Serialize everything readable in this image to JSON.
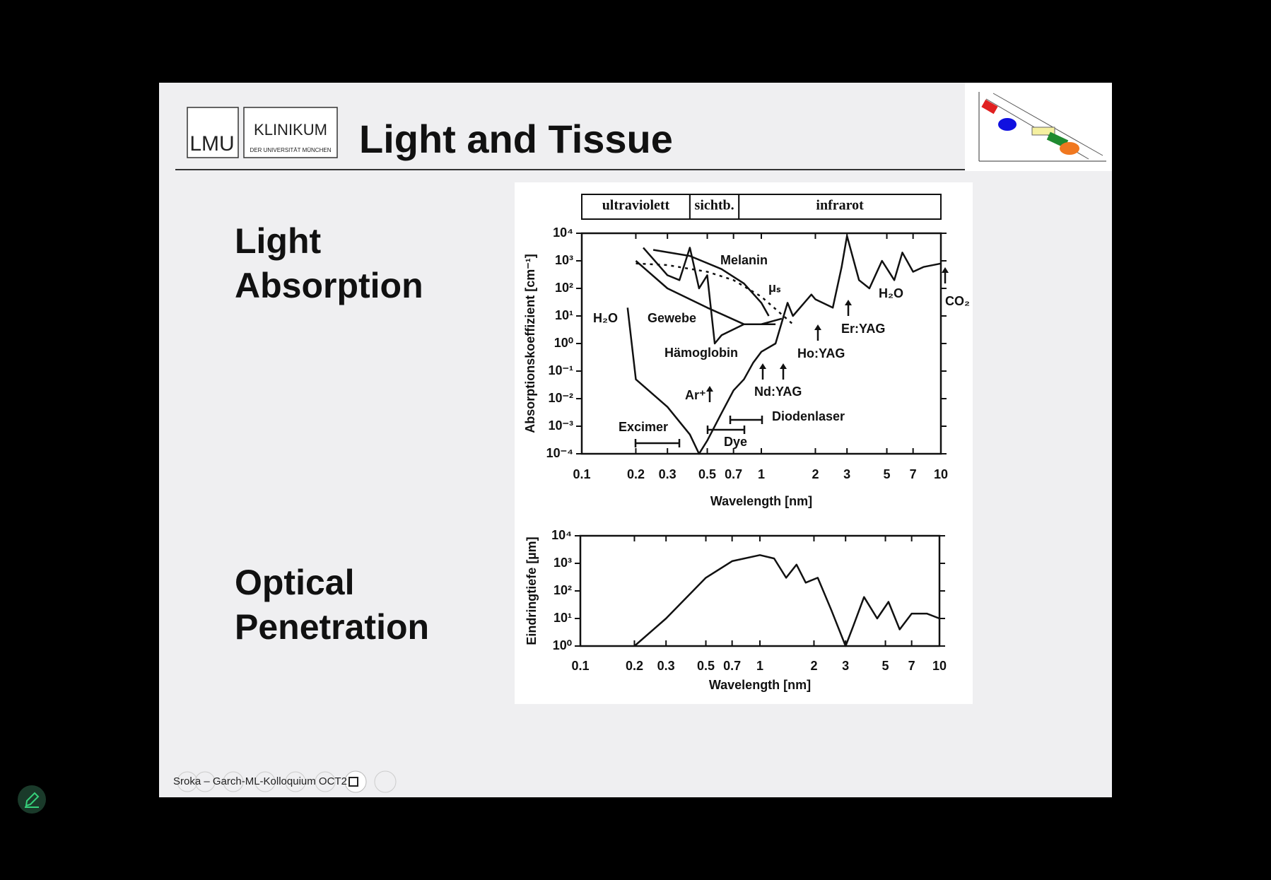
{
  "slide": {
    "title": "Light and Tissue",
    "logo_lmu": "LMU",
    "logo_klinikum": "KLINIKUM",
    "logo_sub": "DER UNIVERSITÄT MÜNCHEN",
    "heading_1": [
      "Light",
      "Absorption"
    ],
    "heading_2": [
      "Optical",
      "Penetration"
    ],
    "footer": "Sroka – Garch-ML-Kolloquium OCT2"
  },
  "chart_data": [
    {
      "type": "line",
      "x_label": "Wavelength [nm]",
      "y_label": "Absorptionskoeffizient [cm⁻¹]",
      "log_x": true,
      "log_y": true,
      "xlim": [
        0.1,
        10
      ],
      "xticks": [
        0.1,
        0.2,
        0.3,
        0.5,
        0.7,
        1,
        2,
        3,
        5,
        7,
        10
      ],
      "ylim": [
        0.0001,
        10000
      ],
      "yticks": [
        {
          "value": 0.0001,
          "label": "10⁻⁴"
        },
        {
          "value": 0.001,
          "label": "10⁻³"
        },
        {
          "value": 0.01,
          "label": "10⁻²"
        },
        {
          "value": 0.1,
          "label": "10⁻¹"
        },
        {
          "value": 1,
          "label": "10⁰"
        },
        {
          "value": 10,
          "label": "10¹"
        },
        {
          "value": 100,
          "label": "10²"
        },
        {
          "value": 1000,
          "label": "10³"
        },
        {
          "value": 10000,
          "label": "10⁴"
        }
      ],
      "bands": [
        {
          "label": "ultraviolett",
          "from": 0.1,
          "to": 0.4
        },
        {
          "label": "sichtb.",
          "from": 0.4,
          "to": 0.75
        },
        {
          "label": "infrarot",
          "from": 0.75,
          "to": 10
        }
      ],
      "series": [
        {
          "name": "H₂O",
          "color": "#111111",
          "dashed": false,
          "x": [
            0.18,
            0.2,
            0.3,
            0.4,
            0.45,
            0.5,
            0.6,
            0.7,
            0.8,
            0.9,
            1.0,
            1.2,
            1.4,
            1.5,
            1.9,
            2.0,
            2.5,
            2.8,
            3.0,
            3.5,
            4.0,
            4.7,
            5.5,
            6.1,
            7,
            8,
            10
          ],
          "values": [
            20,
            0.05,
            0.005,
            0.0005,
            0.0001,
            0.0003,
            0.003,
            0.02,
            0.05,
            0.2,
            0.5,
            1,
            30,
            10,
            60,
            40,
            20,
            600,
            8000,
            200,
            100,
            1000,
            200,
            2000,
            400,
            600,
            800
          ]
        },
        {
          "name": "Melanin",
          "color": "#111111",
          "dashed": false,
          "x": [
            0.25,
            0.4,
            0.6,
            0.8,
            1.0,
            1.1
          ],
          "values": [
            2500,
            1500,
            500,
            150,
            30,
            10
          ]
        },
        {
          "name": "Hämoglobin",
          "color": "#111111",
          "dashed": false,
          "x": [
            0.22,
            0.3,
            0.35,
            0.4,
            0.45,
            0.5,
            0.55,
            0.6,
            0.8,
            1.0,
            1.2
          ],
          "values": [
            3000,
            300,
            200,
            3000,
            100,
            300,
            1,
            2,
            5,
            5,
            5
          ]
        },
        {
          "name": "Gewebe",
          "color": "#111111",
          "dashed": false,
          "x": [
            0.2,
            0.3,
            0.5,
            0.8,
            1.0,
            1.3
          ],
          "values": [
            1000,
            100,
            20,
            5,
            5,
            8
          ]
        },
        {
          "name": "μₛ",
          "color": "#111111",
          "dashed": true,
          "x": [
            0.2,
            0.3,
            0.5,
            0.7,
            1,
            1.5
          ],
          "values": [
            800,
            700,
            400,
            200,
            50,
            5
          ]
        }
      ],
      "annotations": [
        "H₂O",
        "CO₂",
        "Er:YAG",
        "Ho:YAG",
        "Nd:YAG",
        "Ar⁺",
        "Excimer",
        "Dye",
        "Diodenlaser"
      ]
    },
    {
      "type": "line",
      "x_label": "Wavelength [nm]",
      "y_label": "Eindringtiefe [µm]",
      "log_x": true,
      "log_y": true,
      "xlim": [
        0.1,
        10
      ],
      "xticks": [
        0.1,
        0.2,
        0.3,
        0.5,
        0.7,
        1,
        2,
        3,
        5,
        7,
        10
      ],
      "ylim": [
        1,
        10000
      ],
      "yticks": [
        {
          "value": 1,
          "label": "10⁰"
        },
        {
          "value": 10,
          "label": "10¹"
        },
        {
          "value": 100,
          "label": "10²"
        },
        {
          "value": 1000,
          "label": "10³"
        },
        {
          "value": 10000,
          "label": "10⁴"
        }
      ],
      "series": [
        {
          "color": "#111111",
          "dashed": false,
          "x": [
            0.2,
            0.3,
            0.5,
            0.7,
            1,
            1.2,
            1.4,
            1.6,
            1.8,
            2.1,
            2.5,
            3,
            3.3,
            3.8,
            4.5,
            5.2,
            6,
            7,
            8.5,
            10
          ],
          "values": [
            1,
            10,
            300,
            1200,
            2000,
            1500,
            300,
            900,
            200,
            300,
            20,
            1,
            5,
            60,
            10,
            40,
            4,
            15,
            15,
            10
          ]
        }
      ]
    }
  ]
}
